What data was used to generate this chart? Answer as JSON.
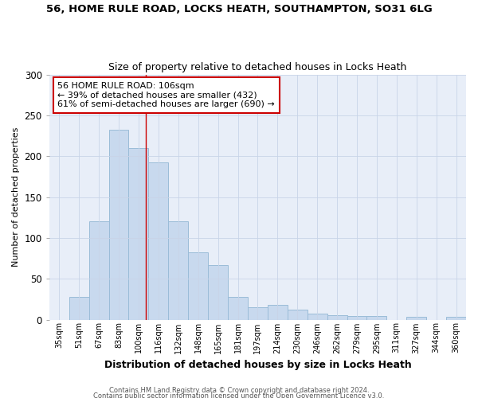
{
  "title_line1": "56, HOME RULE ROAD, LOCKS HEATH, SOUTHAMPTON, SO31 6LG",
  "title_line2": "Size of property relative to detached houses in Locks Heath",
  "xlabel": "Distribution of detached houses by size in Locks Heath",
  "ylabel": "Number of detached properties",
  "categories": [
    "35sqm",
    "51sqm",
    "67sqm",
    "83sqm",
    "100sqm",
    "116sqm",
    "132sqm",
    "148sqm",
    "165sqm",
    "181sqm",
    "197sqm",
    "214sqm",
    "230sqm",
    "246sqm",
    "262sqm",
    "279sqm",
    "295sqm",
    "311sqm",
    "327sqm",
    "344sqm",
    "360sqm"
  ],
  "values": [
    0,
    28,
    120,
    232,
    210,
    192,
    120,
    82,
    67,
    28,
    15,
    18,
    12,
    7,
    5,
    4,
    4,
    0,
    3,
    0,
    3
  ],
  "bar_color": "#c8d9ee",
  "bar_edge_color": "#9bbcd8",
  "grid_color": "#c8d4e8",
  "vline_x_index": 4.38,
  "vline_color": "#cc0000",
  "annotation_text": "56 HOME RULE ROAD: 106sqm\n← 39% of detached houses are smaller (432)\n61% of semi-detached houses are larger (690) →",
  "annotation_box_color": "#ffffff",
  "annotation_box_edge_color": "#cc0000",
  "ylim": [
    0,
    300
  ],
  "yticks": [
    0,
    50,
    100,
    150,
    200,
    250,
    300
  ],
  "footer_line1": "Contains HM Land Registry data © Crown copyright and database right 2024.",
  "footer_line2": "Contains public sector information licensed under the Open Government Licence v3.0.",
  "background_color": "#ffffff",
  "plot_bg_color": "#e8eef8"
}
